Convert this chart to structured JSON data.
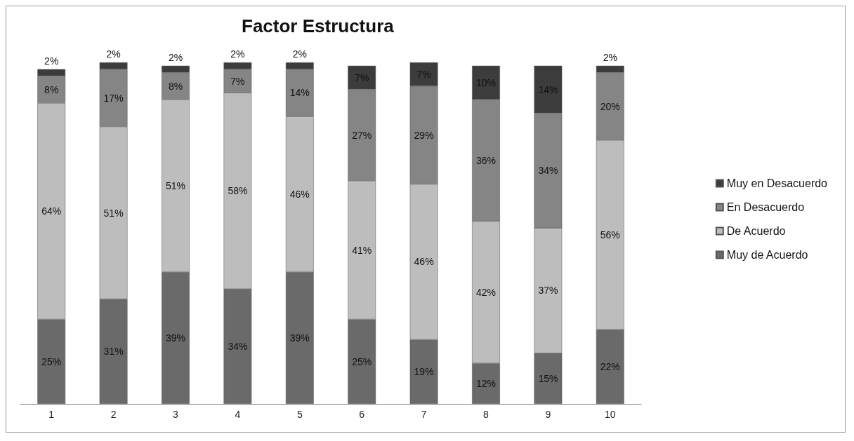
{
  "chart_data": {
    "type": "bar",
    "title": "Factor Estructura",
    "stacked": true,
    "legend": "right",
    "categories": [
      "1",
      "2",
      "3",
      "4",
      "5",
      "6",
      "7",
      "8",
      "9",
      "10"
    ],
    "series": [
      {
        "name": "Muy de Acuerdo",
        "color": "#6a6a6a",
        "values": [
          25,
          31,
          39,
          34,
          39,
          25,
          19,
          12,
          15,
          22
        ],
        "value_labels": [
          "25%",
          "31%",
          "39%",
          "34%",
          "39%",
          "25%",
          "19%",
          "12%",
          "15%",
          "22%"
        ]
      },
      {
        "name": "De Acuerdo",
        "color": "#bdbdbd",
        "values": [
          64,
          51,
          51,
          58,
          46,
          41,
          46,
          42,
          37,
          56
        ],
        "value_labels": [
          "64%",
          "51%",
          "51%",
          "58%",
          "46%",
          "41%",
          "46%",
          "42%",
          "37%",
          "56%"
        ]
      },
      {
        "name": "En Desacuerdo",
        "color": "#858585",
        "values": [
          8,
          17,
          8,
          7,
          14,
          27,
          29,
          36,
          34,
          20
        ],
        "value_labels": [
          "8%",
          "17%",
          "8%",
          "7%",
          "14%",
          "27%",
          "29%",
          "36%",
          "34%",
          "20%"
        ]
      },
      {
        "name": "Muy en Desacuerdo",
        "color": "#3c3c3c",
        "values": [
          2,
          2,
          2,
          2,
          2,
          7,
          7,
          10,
          14,
          2
        ],
        "value_labels": [
          "2%",
          "2%",
          "2%",
          "2%",
          "2%",
          "7%",
          "7%",
          "10%",
          "14%",
          "2%"
        ]
      }
    ]
  }
}
